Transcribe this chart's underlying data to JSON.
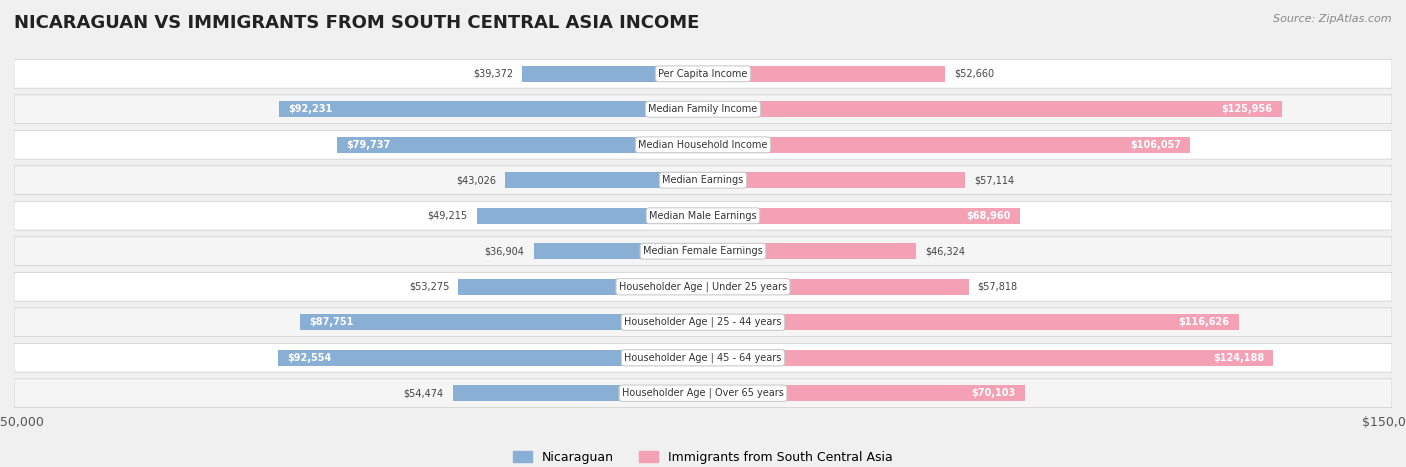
{
  "title": "NICARAGUAN VS IMMIGRANTS FROM SOUTH CENTRAL ASIA INCOME",
  "source": "Source: ZipAtlas.com",
  "categories": [
    "Per Capita Income",
    "Median Family Income",
    "Median Household Income",
    "Median Earnings",
    "Median Male Earnings",
    "Median Female Earnings",
    "Householder Age | Under 25 years",
    "Householder Age | 25 - 44 years",
    "Householder Age | 45 - 64 years",
    "Householder Age | Over 65 years"
  ],
  "nicaraguan_values": [
    39372,
    92231,
    79737,
    43026,
    49215,
    36904,
    53275,
    87751,
    92554,
    54474
  ],
  "immigrant_values": [
    52660,
    125956,
    106057,
    57114,
    68960,
    46324,
    57818,
    116626,
    124188,
    70103
  ],
  "nicaraguan_labels": [
    "$39,372",
    "$92,231",
    "$79,737",
    "$43,026",
    "$49,215",
    "$36,904",
    "$53,275",
    "$87,751",
    "$92,554",
    "$54,474"
  ],
  "immigrant_labels": [
    "$52,660",
    "$125,956",
    "$106,057",
    "$57,114",
    "$68,960",
    "$46,324",
    "$57,818",
    "$116,626",
    "$124,188",
    "$70,103"
  ],
  "max_value": 150000,
  "nicaraguan_color": "#8aafd4",
  "immigrant_color": "#f4a0b5",
  "nicaraguan_dark_color": "#5b8fc9",
  "immigrant_dark_color": "#e8547a",
  "bg_color": "#f0f0f0",
  "row_bg_color": "#ffffff",
  "alt_row_bg_color": "#f5f5f5",
  "legend_nicaraguan": "Nicaraguan",
  "legend_immigrant": "Immigrants from South Central Asia"
}
